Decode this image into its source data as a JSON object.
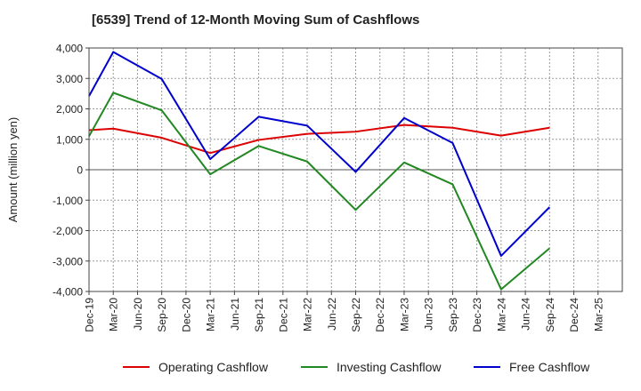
{
  "chart_data": {
    "type": "line",
    "title": "[6539]  Trend of 12-Month Moving Sum of Cashflows",
    "ylabel": "Amount (million yen)",
    "xlabel": "",
    "ylim": [
      -4000,
      4000
    ],
    "yticks": [
      4000,
      3000,
      2000,
      1000,
      0,
      -1000,
      -2000,
      -3000,
      -4000
    ],
    "ytick_labels": [
      "4,000",
      "3,000",
      "2,000",
      "1,000",
      "0",
      "-1,000",
      "-2,000",
      "-3,000",
      "-4,000"
    ],
    "categories": [
      "Dec-19",
      "Mar-20",
      "Jun-20",
      "Sep-20",
      "Dec-20",
      "Mar-21",
      "Jun-21",
      "Sep-21",
      "Dec-21",
      "Mar-22",
      "Jun-22",
      "Sep-22",
      "Dec-22",
      "Mar-23",
      "Jun-23",
      "Sep-23",
      "Dec-23",
      "Mar-24",
      "Jun-24",
      "Sep-24",
      "Dec-24",
      "Mar-25"
    ],
    "grid": true,
    "legend_position": "bottom",
    "series": [
      {
        "name": "Operating Cashflow",
        "color": "#dd0000",
        "points": [
          {
            "x": "Dec-19",
            "y": 1300
          },
          {
            "x": "Mar-20",
            "y": 1350
          },
          {
            "x": "Sep-20",
            "y": 1050
          },
          {
            "x": "Mar-21",
            "y": 550
          },
          {
            "x": "Sep-21",
            "y": 980
          },
          {
            "x": "Mar-22",
            "y": 1180
          },
          {
            "x": "Sep-22",
            "y": 1250
          },
          {
            "x": "Mar-23",
            "y": 1470
          },
          {
            "x": "Sep-23",
            "y": 1380
          },
          {
            "x": "Mar-24",
            "y": 1120
          },
          {
            "x": "Sep-24",
            "y": 1380
          }
        ]
      },
      {
        "name": "Investing Cashflow",
        "color": "#228822",
        "points": [
          {
            "x": "Dec-19",
            "y": 1100
          },
          {
            "x": "Mar-20",
            "y": 2530
          },
          {
            "x": "Sep-20",
            "y": 1950
          },
          {
            "x": "Mar-21",
            "y": -150
          },
          {
            "x": "Sep-21",
            "y": 780
          },
          {
            "x": "Mar-22",
            "y": 270
          },
          {
            "x": "Sep-22",
            "y": -1320
          },
          {
            "x": "Mar-23",
            "y": 240
          },
          {
            "x": "Sep-23",
            "y": -480
          },
          {
            "x": "Mar-24",
            "y": -3930
          },
          {
            "x": "Sep-24",
            "y": -2580
          }
        ]
      },
      {
        "name": "Free Cashflow",
        "color": "#0000cc",
        "points": [
          {
            "x": "Dec-19",
            "y": 2420
          },
          {
            "x": "Mar-20",
            "y": 3870
          },
          {
            "x": "Sep-20",
            "y": 2980
          },
          {
            "x": "Mar-21",
            "y": 350
          },
          {
            "x": "Sep-21",
            "y": 1740
          },
          {
            "x": "Mar-22",
            "y": 1450
          },
          {
            "x": "Sep-22",
            "y": -70
          },
          {
            "x": "Mar-23",
            "y": 1700
          },
          {
            "x": "Sep-23",
            "y": 880
          },
          {
            "x": "Mar-24",
            "y": -2830
          },
          {
            "x": "Sep-24",
            "y": -1230
          }
        ]
      }
    ]
  }
}
